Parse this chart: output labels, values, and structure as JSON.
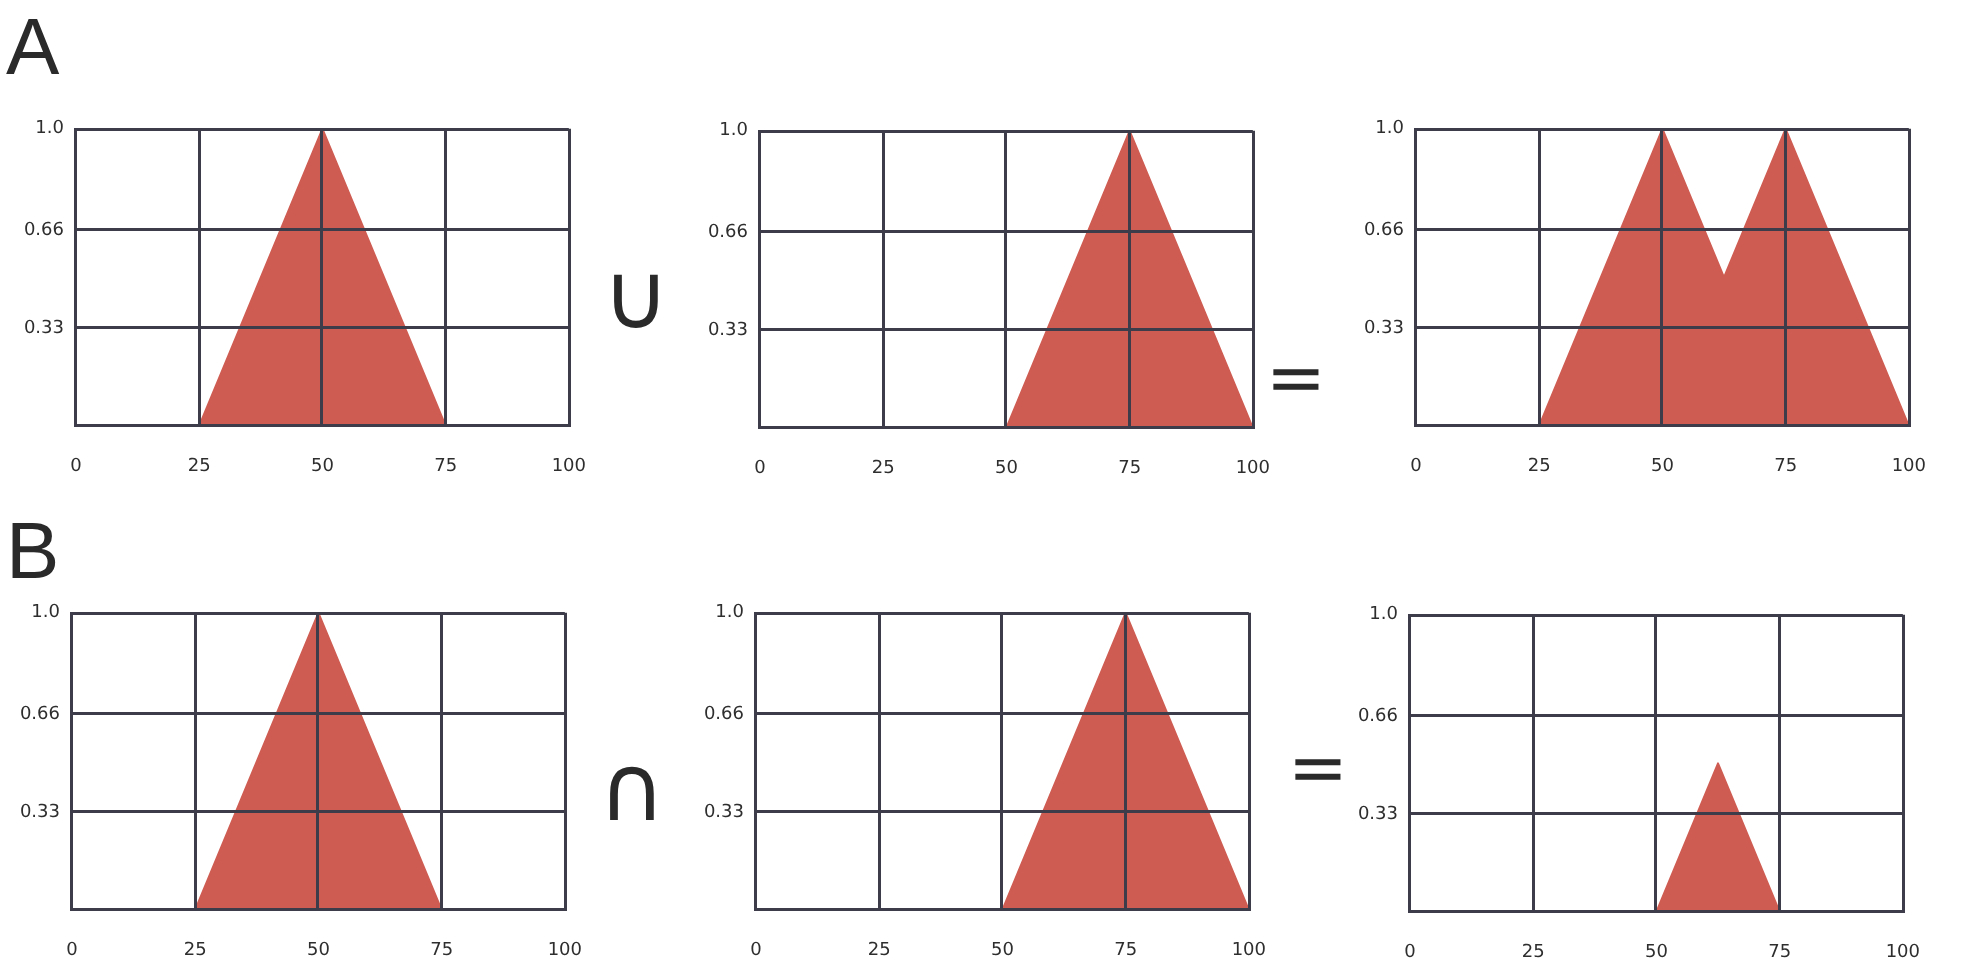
{
  "chart_data": [
    {
      "type": "area",
      "title": "A",
      "x": [
        25,
        50,
        75
      ],
      "values": [
        0,
        1,
        0
      ],
      "color": "#cf5c52",
      "xlim": [
        0,
        100
      ],
      "ylim": [
        0,
        1
      ],
      "xticks": [
        0,
        25,
        50,
        75,
        100
      ],
      "yticks": [
        {
          "value": 0.33,
          "label": "0.33"
        },
        {
          "value": 0.66,
          "label": "0.66"
        },
        {
          "value": 1,
          "label": "1.0"
        }
      ],
      "grid": true
    },
    {
      "type": "area",
      "annotations": [
        "∪"
      ],
      "x": [
        50,
        75,
        100
      ],
      "values": [
        0,
        1,
        0
      ],
      "color": "#cf5c52",
      "xlim": [
        0,
        100
      ],
      "ylim": [
        0,
        1
      ],
      "xticks": [
        0,
        25,
        50,
        75,
        100
      ],
      "yticks": [
        {
          "value": 0.33,
          "label": "0.33"
        },
        {
          "value": 0.66,
          "label": "0.66"
        },
        {
          "value": 1,
          "label": "1.0"
        }
      ],
      "grid": true
    },
    {
      "type": "area",
      "annotations": [
        "="
      ],
      "x": [
        25,
        50,
        62.5,
        75,
        100
      ],
      "values": [
        0,
        1,
        0.5,
        1,
        0
      ],
      "color": "#cf5c52",
      "xlim": [
        0,
        100
      ],
      "ylim": [
        0,
        1
      ],
      "xticks": [
        0,
        25,
        50,
        75,
        100
      ],
      "yticks": [
        {
          "value": 0.33,
          "label": "0.33"
        },
        {
          "value": 0.66,
          "label": "0.66"
        },
        {
          "value": 1,
          "label": "1.0"
        }
      ],
      "grid": true
    },
    {
      "type": "area",
      "title": "B",
      "x": [
        25,
        50,
        75
      ],
      "values": [
        0,
        1,
        0
      ],
      "color": "#cf5c52",
      "xlim": [
        0,
        100
      ],
      "ylim": [
        0,
        1
      ],
      "xticks": [
        0,
        25,
        50,
        75,
        100
      ],
      "yticks": [
        {
          "value": 0.33,
          "label": "0.33"
        },
        {
          "value": 0.66,
          "label": "0.66"
        },
        {
          "value": 1,
          "label": "1.0"
        }
      ],
      "grid": true
    },
    {
      "type": "area",
      "annotations": [
        "∩"
      ],
      "x": [
        50,
        75,
        100
      ],
      "values": [
        0,
        1,
        0
      ],
      "color": "#cf5c52",
      "xlim": [
        0,
        100
      ],
      "ylim": [
        0,
        1
      ],
      "xticks": [
        0,
        25,
        50,
        75,
        100
      ],
      "yticks": [
        {
          "value": 0.33,
          "label": "0.33"
        },
        {
          "value": 0.66,
          "label": "0.66"
        },
        {
          "value": 1,
          "label": "1.0"
        }
      ],
      "grid": true
    },
    {
      "type": "area",
      "annotations": [
        "="
      ],
      "x": [
        50,
        62.5,
        75
      ],
      "values": [
        0,
        0.5,
        0
      ],
      "color": "#cf5c52",
      "xlim": [
        0,
        100
      ],
      "ylim": [
        0,
        1
      ],
      "xticks": [
        0,
        25,
        50,
        75,
        100
      ],
      "yticks": [
        {
          "value": 0.33,
          "label": "0.33"
        },
        {
          "value": 0.66,
          "label": "0.66"
        },
        {
          "value": 1,
          "label": "1.0"
        }
      ],
      "grid": true
    }
  ]
}
